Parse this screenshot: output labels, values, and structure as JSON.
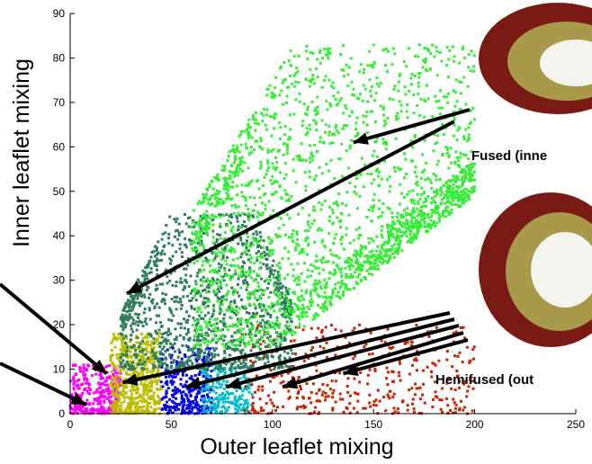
{
  "chart_data": {
    "type": "scatter",
    "xlabel": "Outer leaflet mixing",
    "ylabel": "Inner leaflet mixing",
    "xlim": [
      0,
      250
    ],
    "ylim": [
      0,
      90
    ],
    "xticks": [
      0,
      50,
      100,
      150,
      200,
      250
    ],
    "yticks": [
      0,
      10,
      20,
      30,
      40,
      50,
      60,
      70,
      80,
      90
    ],
    "grid": false,
    "series": [
      {
        "color": "#ff00ff",
        "x_range": [
          0,
          25
        ],
        "y_range": [
          0,
          11
        ],
        "count": 300
      },
      {
        "color": "#bdbd00",
        "x_range": [
          20,
          45
        ],
        "y_range": [
          0,
          18
        ],
        "count": 500
      },
      {
        "color": "#0000ee",
        "x_range": [
          45,
          70
        ],
        "y_range": [
          0,
          15
        ],
        "count": 300
      },
      {
        "color": "#00bbcc",
        "x_range": [
          65,
          90
        ],
        "y_range": [
          0,
          11
        ],
        "count": 220
      },
      {
        "color": "#cc2200",
        "x_range": [
          85,
          200
        ],
        "y_range": [
          0,
          20
        ],
        "count": 400
      },
      {
        "color": "#2e7d5b",
        "x_range": [
          25,
          110
        ],
        "y_range": [
          10,
          45
        ],
        "count": 1200
      },
      {
        "color": "#33ee33",
        "x_range": [
          60,
          200
        ],
        "y_range": [
          15,
          83
        ],
        "count": 2200
      }
    ],
    "annotations": [
      {
        "text": "Fused (inne",
        "target": [
          145,
          63
        ]
      },
      {
        "text": "Hemifused (out",
        "target": [
          135,
          9
        ]
      }
    ]
  }
}
